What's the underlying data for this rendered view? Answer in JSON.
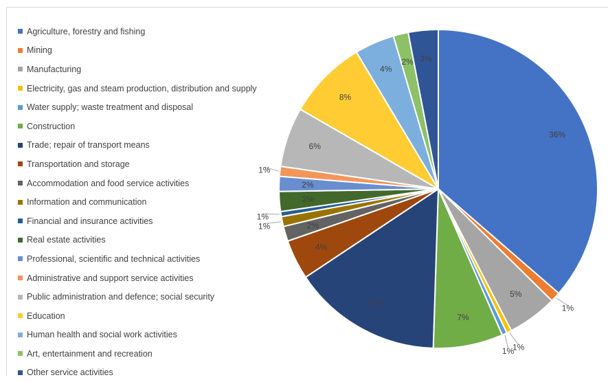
{
  "chart_data": {
    "type": "pie",
    "legend_position": "left",
    "slices": [
      {
        "name": "Agriculture, forestry and fishing",
        "value": 36,
        "label": "36%",
        "color": "#4472C4"
      },
      {
        "name": "Mining",
        "value": 1,
        "label": "1%",
        "color": "#ED7D31"
      },
      {
        "name": "Manufacturing",
        "value": 5,
        "label": "5%",
        "color": "#A5A5A5"
      },
      {
        "name": "Electricity, gas and steam production, distribution and supply",
        "value": 0.5,
        "label": "1%",
        "color": "#FFC000"
      },
      {
        "name": "Water supply; waste treatment and disposal",
        "value": 0.5,
        "label": "1%",
        "color": "#5B9BD5"
      },
      {
        "name": "Construction",
        "value": 7,
        "label": "7%",
        "color": "#70AD47"
      },
      {
        "name": "Trade; repair of transport means",
        "value": 15,
        "label": "15%",
        "color": "#264478"
      },
      {
        "name": "Transportation and storage",
        "value": 4,
        "label": "4%",
        "color": "#9E480E"
      },
      {
        "name": "Accommodation and food service activities",
        "value": 1.5,
        "label": "2%",
        "color": "#636363"
      },
      {
        "name": "Information and communication",
        "value": 1,
        "label": "1%",
        "color": "#997300"
      },
      {
        "name": "Financial and insurance activities",
        "value": 0.5,
        "label": "1%",
        "color": "#255E91"
      },
      {
        "name": "Real estate activities",
        "value": 2,
        "label": "2%",
        "color": "#43682B"
      },
      {
        "name": "Professional, scientific and technical activities",
        "value": 1.5,
        "label": "2%",
        "color": "#698ED0"
      },
      {
        "name": "Administrative and support service activities",
        "value": 1,
        "label": "1%",
        "color": "#F1975A"
      },
      {
        "name": "Public administration and defence; social security",
        "value": 6,
        "label": "6%",
        "color": "#B7B7B7"
      },
      {
        "name": "Education",
        "value": 8,
        "label": "8%",
        "color": "#FFCD33"
      },
      {
        "name": "Human health and social work activities",
        "value": 4,
        "label": "4%",
        "color": "#7CAFDD"
      },
      {
        "name": "Art, entertainment and recreation",
        "value": 1.5,
        "label": "2%",
        "color": "#8CC168"
      },
      {
        "name": "Other service activities",
        "value": 3,
        "label": "3%",
        "color": "#2F5597"
      }
    ]
  }
}
